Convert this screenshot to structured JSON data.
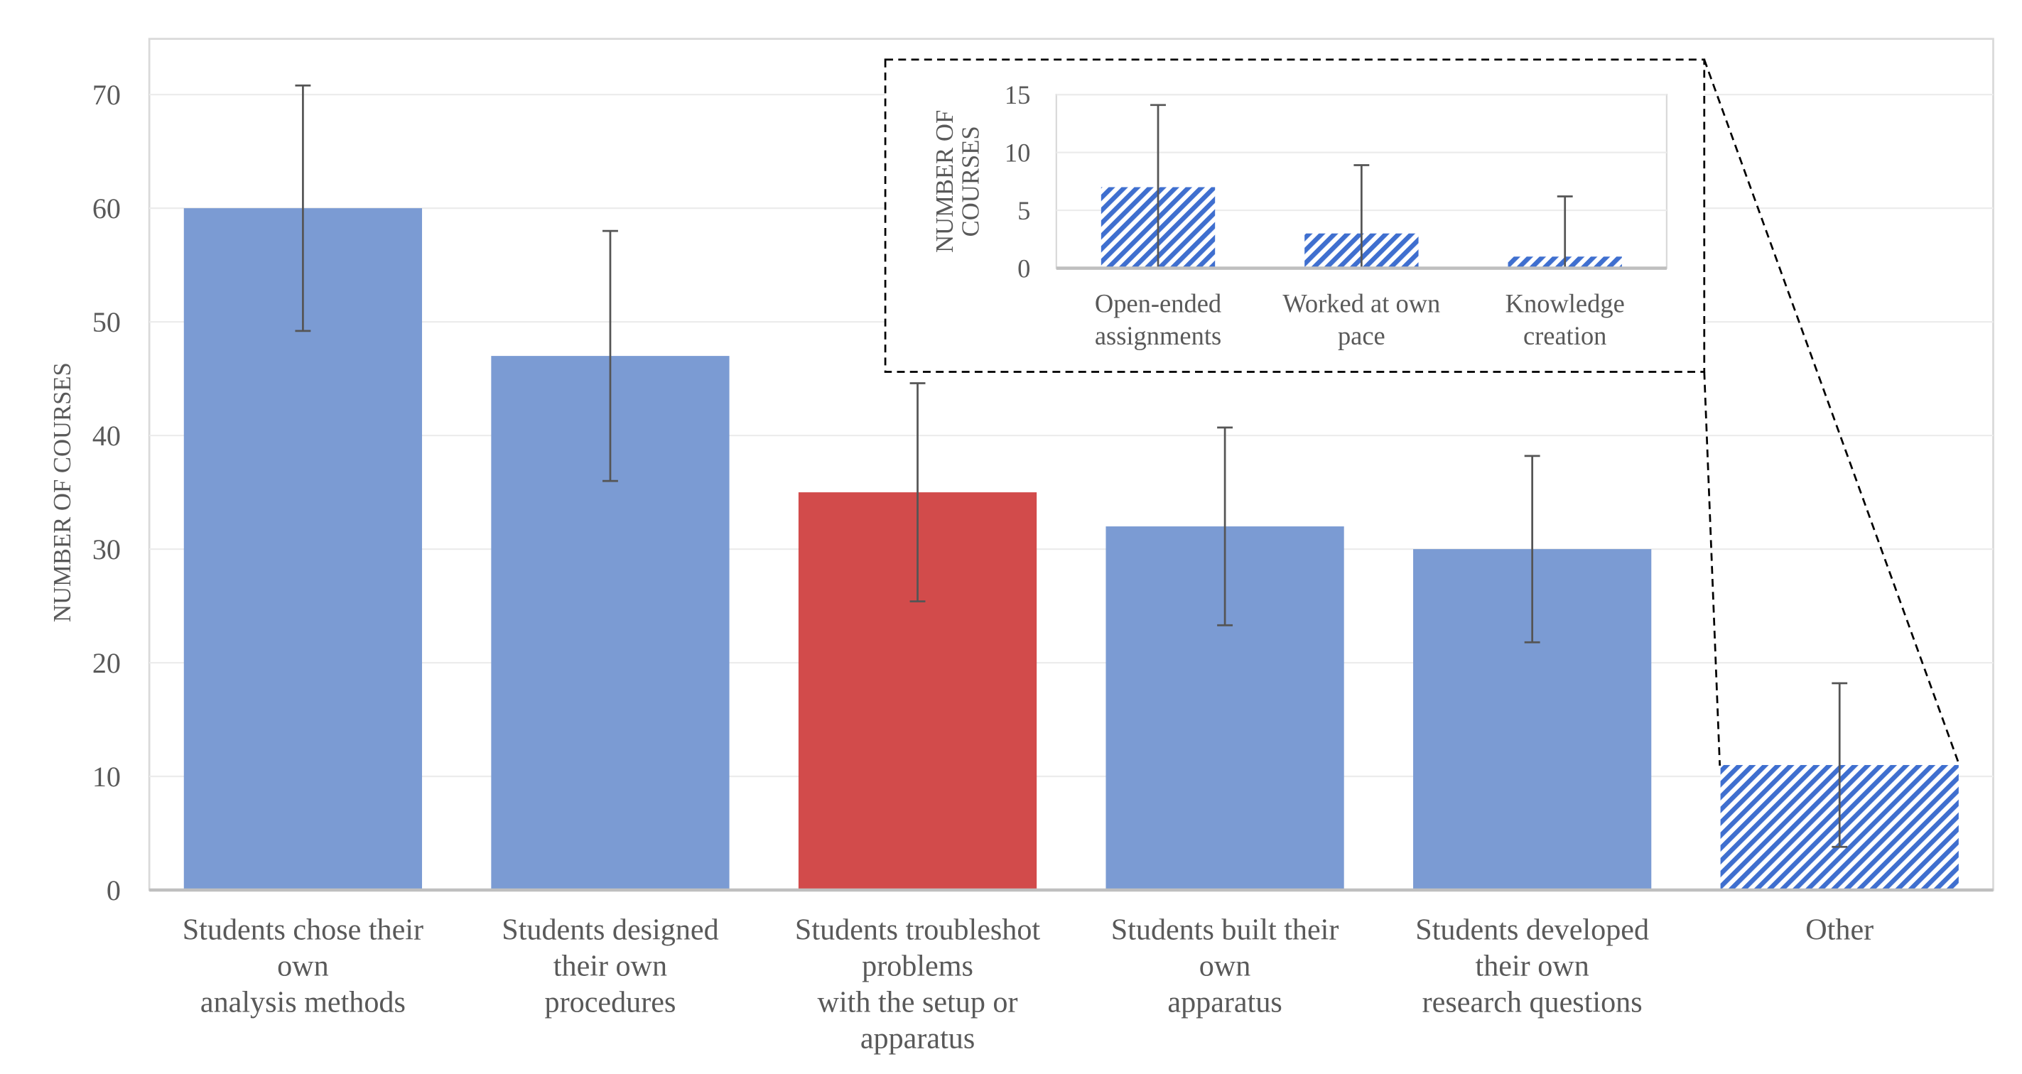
{
  "chart_data": [
    {
      "type": "bar",
      "title": "",
      "xlabel": "",
      "ylabel": "NUMBER OF COURSES",
      "ylim": [
        0,
        70
      ],
      "yticks": [
        "0",
        "10",
        "20",
        "30",
        "40",
        "50",
        "60",
        "70"
      ],
      "grid": true,
      "categories": [
        [
          "Students chose their",
          "own",
          "analysis methods"
        ],
        [
          "Students designed",
          "their own",
          "procedures"
        ],
        [
          "Students troubleshot",
          "problems",
          "with the setup or",
          "apparatus"
        ],
        [
          "Students built their",
          "own",
          "apparatus"
        ],
        [
          "Students developed",
          "their own",
          "research questions"
        ],
        [
          "Other"
        ]
      ],
      "values": [
        60,
        47,
        35,
        32,
        30,
        11
      ],
      "error_low": [
        49.2,
        36,
        25.4,
        23.3,
        21.8,
        3.8
      ],
      "error_high": [
        70.8,
        58,
        44.6,
        40.7,
        38.2,
        18.2
      ],
      "fills": [
        "solid",
        "solid",
        "solid-highlight",
        "solid",
        "solid",
        "hatched"
      ],
      "colors": {
        "bar": "#7b9bd3",
        "highlight": "#d24b4b",
        "hatch": "#3f6fcf",
        "error": "#555555"
      }
    },
    {
      "type": "bar",
      "title": "",
      "xlabel": "",
      "ylabel": [
        "NUMBER OF",
        "COURSES"
      ],
      "ylim": [
        0,
        15
      ],
      "yticks": [
        "0",
        "5",
        "10",
        "15"
      ],
      "grid": true,
      "categories": [
        [
          "Open-ended",
          "assignments"
        ],
        [
          "Worked at own",
          "pace"
        ],
        [
          "Knowledge",
          "creation"
        ]
      ],
      "values": [
        7,
        3,
        1
      ],
      "error_low": [
        0,
        0,
        0
      ],
      "error_high": [
        14.1,
        8.9,
        6.2
      ],
      "fills": [
        "hatched",
        "hatched",
        "hatched"
      ],
      "annotation": "inset breakdown of Other"
    }
  ]
}
